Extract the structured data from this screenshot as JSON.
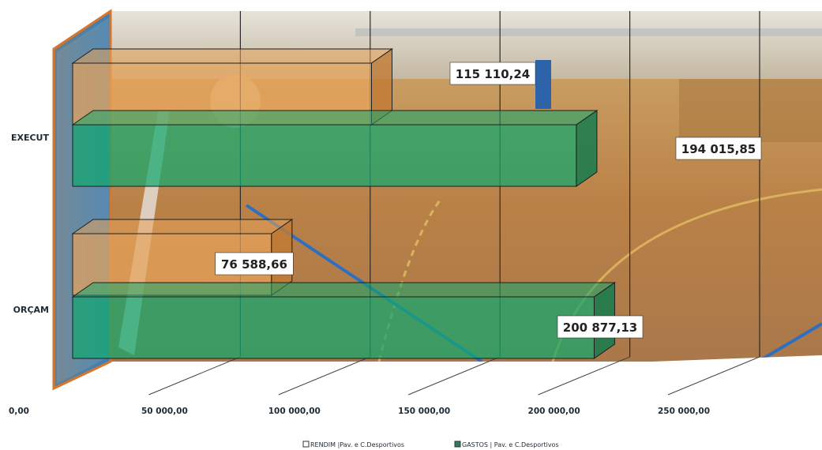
{
  "chart_data": {
    "type": "bar",
    "orientation": "horizontal",
    "style": "3d-clustered",
    "categories": [
      "EXECUT",
      "ORÇAM"
    ],
    "series": [
      {
        "name": "RENDIM |Pav. e C.Desportivos",
        "values": [
          115110.24,
          76588.66
        ],
        "color": "#e8a35a"
      },
      {
        "name": "GASTOS | Pav. e C.Desportivos",
        "values": [
          194015.85,
          200877.13
        ],
        "color": "#12a76d"
      }
    ],
    "data_labels": [
      [
        "115 110,24",
        "76 588,66"
      ],
      [
        "194 015,85",
        "200 877,13"
      ]
    ],
    "x_ticks": [
      {
        "value": 0,
        "label": "0,00"
      },
      {
        "value": 50000,
        "label": "50 000,00"
      },
      {
        "value": 100000,
        "label": "100 000,00"
      },
      {
        "value": 150000,
        "label": "150 000,00"
      },
      {
        "value": 200000,
        "label": "200 000,00"
      },
      {
        "value": 250000,
        "label": "250 000,00"
      }
    ],
    "xlim": [
      0,
      250000
    ],
    "grid": true,
    "legend_position": "bottom",
    "background": "photo of an indoor sports hall"
  }
}
